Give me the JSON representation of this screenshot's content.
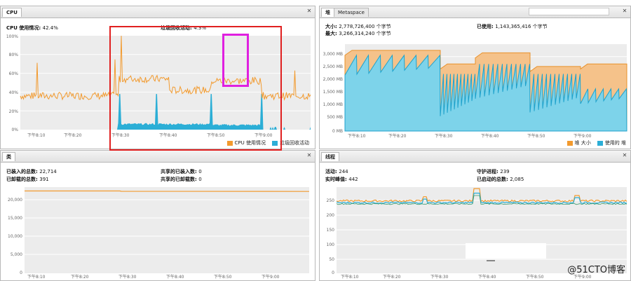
{
  "colors": {
    "orange": "#F29A2E",
    "blue": "#2BAED6",
    "light_blue": "#7DD3EA",
    "red_box": "#E02020",
    "magenta_box": "#E020E0"
  },
  "cpu": {
    "tab": "CPU",
    "cpu_usage_label": "CPU 使用情况:",
    "cpu_usage_value": "42.4%",
    "gc_label": "垃圾回收活动:",
    "gc_value": "4.3%",
    "legend_cpu": "CPU 使用情况",
    "legend_gc": "垃圾回收活动",
    "yticks": [
      "100%",
      "80%",
      "60%",
      "40%",
      "20%",
      "0%"
    ],
    "xticks": [
      "下午8:10",
      "下午8:20",
      "下午8:30",
      "下午8:40",
      "下午8:50",
      "下午9:00"
    ]
  },
  "heap": {
    "tab_heap": "堆",
    "tab_metaspace": "Metaspace",
    "size_label": "大小:",
    "size_value": "2,778,726,400 个字节",
    "max_label": "最大:",
    "max_value": "3,266,314,240 个字节",
    "used_label": "已使用:",
    "used_value": "1,143,365,416 个字节",
    "legend_size": "堆 大小",
    "legend_used": "使用的 堆",
    "yticks": [
      "3,000 MB",
      "2,500 MB",
      "2,000 MB",
      "1,500 MB",
      "1,000 MB",
      "500 MB",
      "0 MB"
    ],
    "xticks": [
      "下午8:10",
      "下午8:20",
      "下午8:30",
      "下午8:40",
      "下午8:50",
      "下午9:00"
    ]
  },
  "classes": {
    "tab": "类",
    "loaded_total_label": "已装入的总数:",
    "loaded_total_value": "22,714",
    "unloaded_total_label": "已卸载的总数:",
    "unloaded_total_value": "391",
    "shared_loaded_label": "共享的已装入数:",
    "shared_loaded_value": "0",
    "shared_unloaded_label": "共享的已卸载数:",
    "shared_unloaded_value": "0",
    "yticks": [
      "20,000",
      "15,000",
      "10,000",
      "5,000",
      "0"
    ],
    "xticks": [
      "下午8:10",
      "下午8:20",
      "下午8:30",
      "下午8:40",
      "下午8:50",
      "下午9:00"
    ]
  },
  "threads": {
    "tab": "线程",
    "live_label": "活动:",
    "live_value": "244",
    "peak_label": "实时峰值:",
    "peak_value": "442",
    "daemon_label": "守护进程:",
    "daemon_value": "239",
    "started_label": "已启动的总数:",
    "started_value": "2,085",
    "yticks": [
      "250",
      "200",
      "150",
      "100",
      "50",
      "0"
    ],
    "xticks": [
      "下午8:10",
      "下午8:20",
      "下午8:30",
      "下午8:40",
      "下午8:50",
      "下午9:00"
    ]
  },
  "watermark": "@51CTO博客"
}
